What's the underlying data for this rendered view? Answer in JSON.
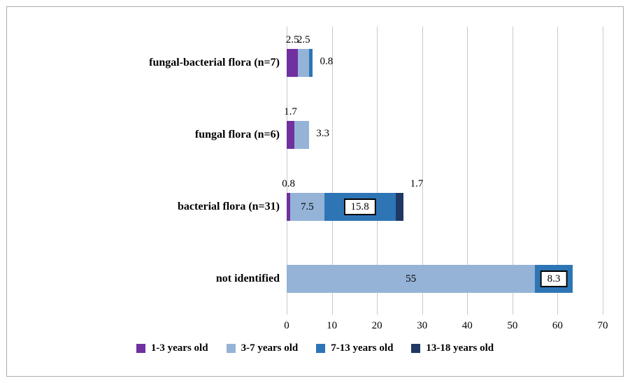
{
  "chart_data": {
    "type": "bar",
    "orientation": "horizontal",
    "stacked": true,
    "title": "",
    "xlabel": "",
    "ylabel": "",
    "xlim": [
      0,
      70
    ],
    "x_ticks": [
      "0",
      "10",
      "20",
      "30",
      "40",
      "50",
      "60",
      "70"
    ],
    "grid": "vertical",
    "legend_position": "bottom",
    "categories": [
      "fungal-bacterial flora (n=7)",
      "fungal flora (n=6)",
      "bacterial flora (n=31)",
      "not identified"
    ],
    "series": [
      {
        "name": "1-3 years old",
        "color": "#7030A0",
        "values": [
          2.5,
          1.7,
          0.8,
          0
        ]
      },
      {
        "name": "3-7 years old",
        "color": "#95B3D7",
        "values": [
          2.5,
          3.3,
          7.5,
          55
        ]
      },
      {
        "name": "7-13 years old",
        "color": "#2E75B6",
        "values": [
          0.8,
          0,
          15.8,
          8.3
        ]
      },
      {
        "name": "13-18 years old",
        "color": "#1F3864",
        "values": [
          0,
          0,
          1.7,
          0
        ]
      }
    ],
    "data_labels": [
      {
        "category": 0,
        "series": 0,
        "text": "2.5",
        "placement": "above",
        "boxed": false
      },
      {
        "category": 0,
        "series": 1,
        "text": "2.5",
        "placement": "above",
        "boxed": false
      },
      {
        "category": 0,
        "series": 2,
        "text": "0.8",
        "placement": "right",
        "boxed": false
      },
      {
        "category": 1,
        "series": 0,
        "text": "1.7",
        "placement": "above",
        "boxed": false
      },
      {
        "category": 1,
        "series": 1,
        "text": "3.3",
        "placement": "right",
        "boxed": false
      },
      {
        "category": 2,
        "series": 0,
        "text": "0.8",
        "placement": "above",
        "boxed": false
      },
      {
        "category": 2,
        "series": 1,
        "text": "7.5",
        "placement": "inside",
        "boxed": false
      },
      {
        "category": 2,
        "series": 2,
        "text": "15.8",
        "placement": "inside",
        "boxed": true
      },
      {
        "category": 2,
        "series": 3,
        "text": "1.7",
        "placement": "above-right",
        "boxed": false
      },
      {
        "category": 3,
        "series": 1,
        "text": "55",
        "placement": "inside",
        "boxed": false
      },
      {
        "category": 3,
        "series": 2,
        "text": "8.3",
        "placement": "inside",
        "boxed": true
      }
    ],
    "colors": {
      "gridline": "#C9C9C9",
      "frame_border": "#ABABAB",
      "text": "#000000",
      "background": "#FFFFFF"
    }
  }
}
